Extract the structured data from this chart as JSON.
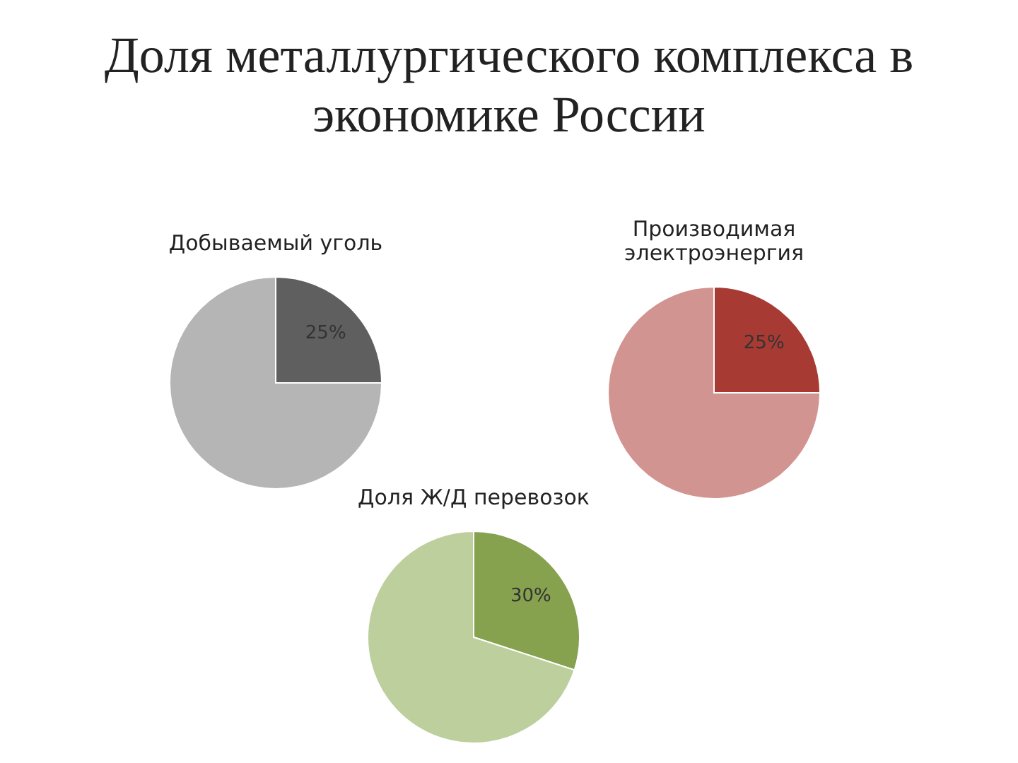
{
  "chart_data": [
    {
      "type": "other",
      "title": "Доля металлургического комплекса в экономике России"
    },
    {
      "type": "pie",
      "title": "Добываемый уголь",
      "categories": [
        null,
        null
      ],
      "values": [
        25,
        75
      ],
      "colors": [
        "#5f5f5f",
        "#b5b5b5"
      ],
      "value_labels": [
        "25%",
        null
      ]
    },
    {
      "type": "pie",
      "title": "Производимая электроэнергия",
      "categories": [
        null,
        null
      ],
      "values": [
        25,
        75
      ],
      "colors": [
        "#a83a34",
        "#d29491"
      ],
      "value_labels": [
        "25%",
        null
      ]
    },
    {
      "type": "pie",
      "title": "Доля Ж/Д перевозок",
      "categories": [
        null,
        null
      ],
      "values": [
        30,
        70
      ],
      "colors": [
        "#87a24e",
        "#bccf9c"
      ],
      "value_labels": [
        "30%",
        null
      ]
    }
  ]
}
